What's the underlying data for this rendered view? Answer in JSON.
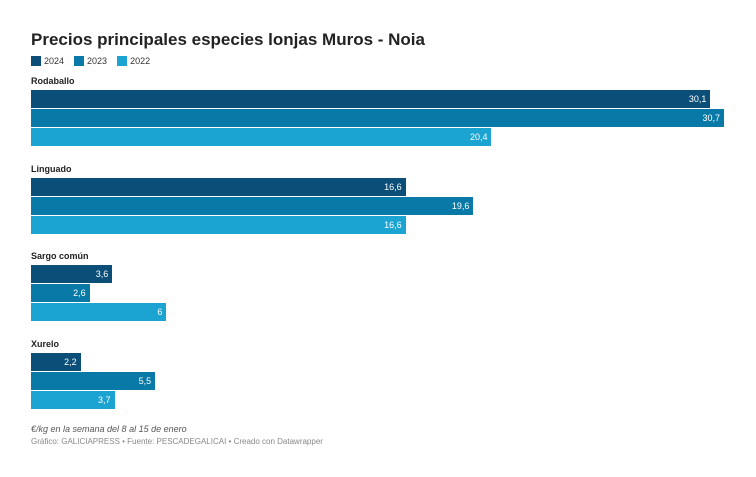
{
  "chart_data": {
    "type": "bar",
    "orientation": "horizontal",
    "title": "Precios principales especies lonjas Muros - Noia",
    "categories": [
      "Rodaballo",
      "Linguado",
      "Sargo común",
      "Xurelo"
    ],
    "series": [
      {
        "name": "2024",
        "color": "#0b4f78",
        "values": [
          30.1,
          16.6,
          3.6,
          2.2
        ],
        "labels": [
          "30,1",
          "16,6",
          "3,6",
          "2,2"
        ]
      },
      {
        "name": "2023",
        "color": "#0979a7",
        "values": [
          30.7,
          19.6,
          2.6,
          5.5
        ],
        "labels": [
          "30,7",
          "19,6",
          "2,6",
          "5,5"
        ]
      },
      {
        "name": "2022",
        "color": "#1ba3d2",
        "values": [
          20.4,
          16.6,
          6,
          3.7
        ],
        "labels": [
          "20,4",
          "16,6",
          "6",
          "3,7"
        ]
      }
    ],
    "xlim": [
      0,
      30.7
    ],
    "legend": "top-left",
    "grid": false,
    "note": "€/kg en la semana del 8 al 15 de enero",
    "source": "Gráfico: GALICIAPRESS • Fuente: PESCADEGALICAI • Creado con Datawrapper"
  }
}
